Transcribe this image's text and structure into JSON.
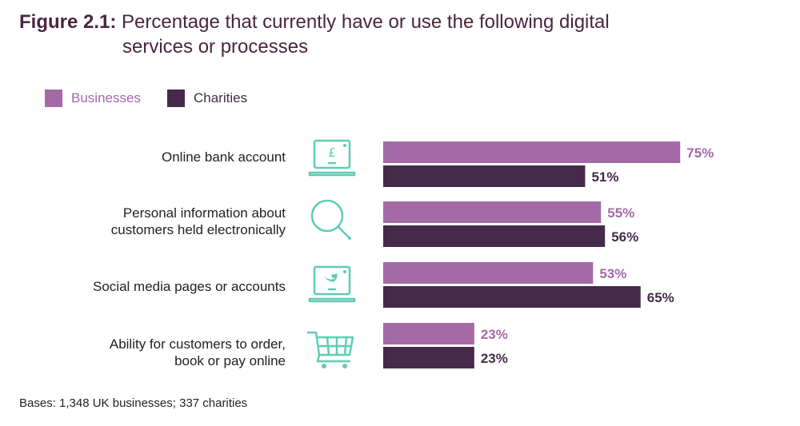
{
  "title": {
    "prefix": "Figure 2.1:",
    "line1": "Percentage that currently have or use the following digital",
    "line2": "services or processes"
  },
  "legend": [
    {
      "label": "Businesses",
      "color": "#a46aa6"
    },
    {
      "label": "Charities",
      "color": "#452a4b"
    }
  ],
  "chart_data": {
    "type": "bar",
    "orientation": "horizontal",
    "categories": [
      "Online bank account",
      "Personal information about customers held electronically",
      "Social media pages or accounts",
      "Ability for customers to order, book or pay online"
    ],
    "category_lines": [
      [
        "Online bank account"
      ],
      [
        "Personal information about",
        "customers held electronically"
      ],
      [
        "Social media pages or accounts"
      ],
      [
        "Ability for customers to order,",
        "book or pay online"
      ]
    ],
    "series": [
      {
        "name": "Businesses",
        "values": [
          75,
          55,
          53,
          23
        ],
        "labels": [
          "75%",
          "55%",
          "53%",
          "23%"
        ],
        "color": "#a46aa6"
      },
      {
        "name": "Charities",
        "values": [
          51,
          56,
          65,
          23
        ],
        "labels": [
          "51%",
          "56%",
          "65%",
          "23%"
        ],
        "color": "#452a4b"
      }
    ],
    "icons": [
      "laptop-pound-icon",
      "magnifier-icon",
      "laptop-twitter-icon",
      "shopping-cart-icon"
    ],
    "icon_color": "#5fcdb4",
    "xlim": [
      0,
      100
    ],
    "grid": false,
    "legend_position": "top-left"
  },
  "footnote": "Bases: 1,348 UK businesses; 337 charities"
}
